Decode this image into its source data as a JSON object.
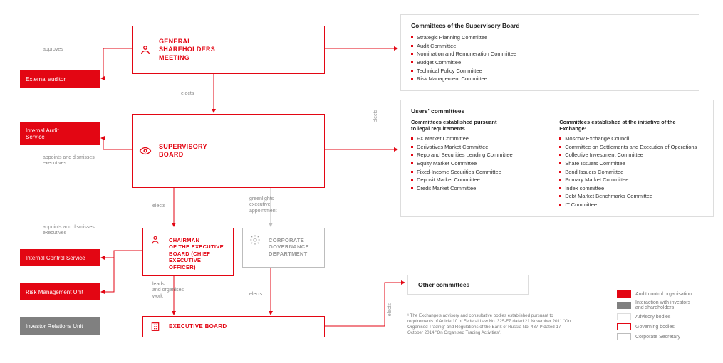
{
  "colors": {
    "red": "#e30613",
    "grey": "#808080",
    "lightgrey": "#bdbdbd",
    "border": "#ddd",
    "text": "#333",
    "muted": "#888"
  },
  "labels": {
    "approves": "approves",
    "elects": "elects",
    "appoints": "appoints and dismisses\nexecutives",
    "greenlights": "greenlights\nexecutive\nappointment",
    "leads": "leads\nand organises\nwork"
  },
  "left": {
    "external_auditor": "External auditor",
    "internal_audit": "Internal Audit\nService",
    "internal_control": "Internal Control Service",
    "risk_mgmt": "Risk Management Unit",
    "investor_relations": "Investor Relations Unit"
  },
  "gov": {
    "gsm": "GENERAL\nSHAREHOLDERS\nMEETING",
    "supervisory": "SUPERVISORY\nBOARD",
    "chairman": "CHAIRMAN\nOF THE EXECUTIVE\nBOARD (CHIEF\nEXECUTIVE\nOFFICER)",
    "corp_gov": "CORPORATE\nGOVERNANCE\nDEPARTMENT",
    "exec_board": "EXECUTIVE BOARD"
  },
  "panels": {
    "supervisory": {
      "title": "Committees of the Supervisory Board",
      "items": [
        "Strategic Planning Committee",
        "Audit Committee",
        "Nomination and Remuneration Committee",
        "Budget Committee",
        "Technical Policy Committee",
        "Risk Management Committee"
      ]
    },
    "users": {
      "title": "Users' committees",
      "col1_sub": "Committees established pursuant\nto legal requirements",
      "col1": [
        "FX Market Committee",
        "Derivatives Market Committee",
        "Repo and Securities Lending Committee",
        "Equity Market Committee",
        "Fixed-Income Securities Committee",
        "Deposit Market Committee",
        "Credit Market Committee"
      ],
      "col2_sub": "Committees established at the initiative of the Exchange¹",
      "col2": [
        "Moscow Exchange Council",
        "Committee on Settlements and Execution of Operations",
        "Collective Investment Committee",
        "Share Issuers Committee",
        "Bond Issuers Committee",
        "Primary Market Committee",
        "Index committee",
        "Debt Market Benchmarks Committee",
        "IT Committee"
      ]
    },
    "other": {
      "title": "Other committees"
    }
  },
  "legend": {
    "audit": "Audit control organisation",
    "interaction": "Interaction with investors\nand shareholders",
    "advisory": "Advisory bodies",
    "governing": "Governing bodies",
    "secretary": "Corporate Secretary"
  },
  "footnote": "¹ The Exchange's advisory and consultative bodies established pursuant to requirements of Article 10 of Federal Law No. 325-FZ dated 21 November 2011 \"On Organised Trading\" and Regulations of the Bank of Russia No. 437-P dated 17 October 2014 \"On Organised Trading Activities\"."
}
